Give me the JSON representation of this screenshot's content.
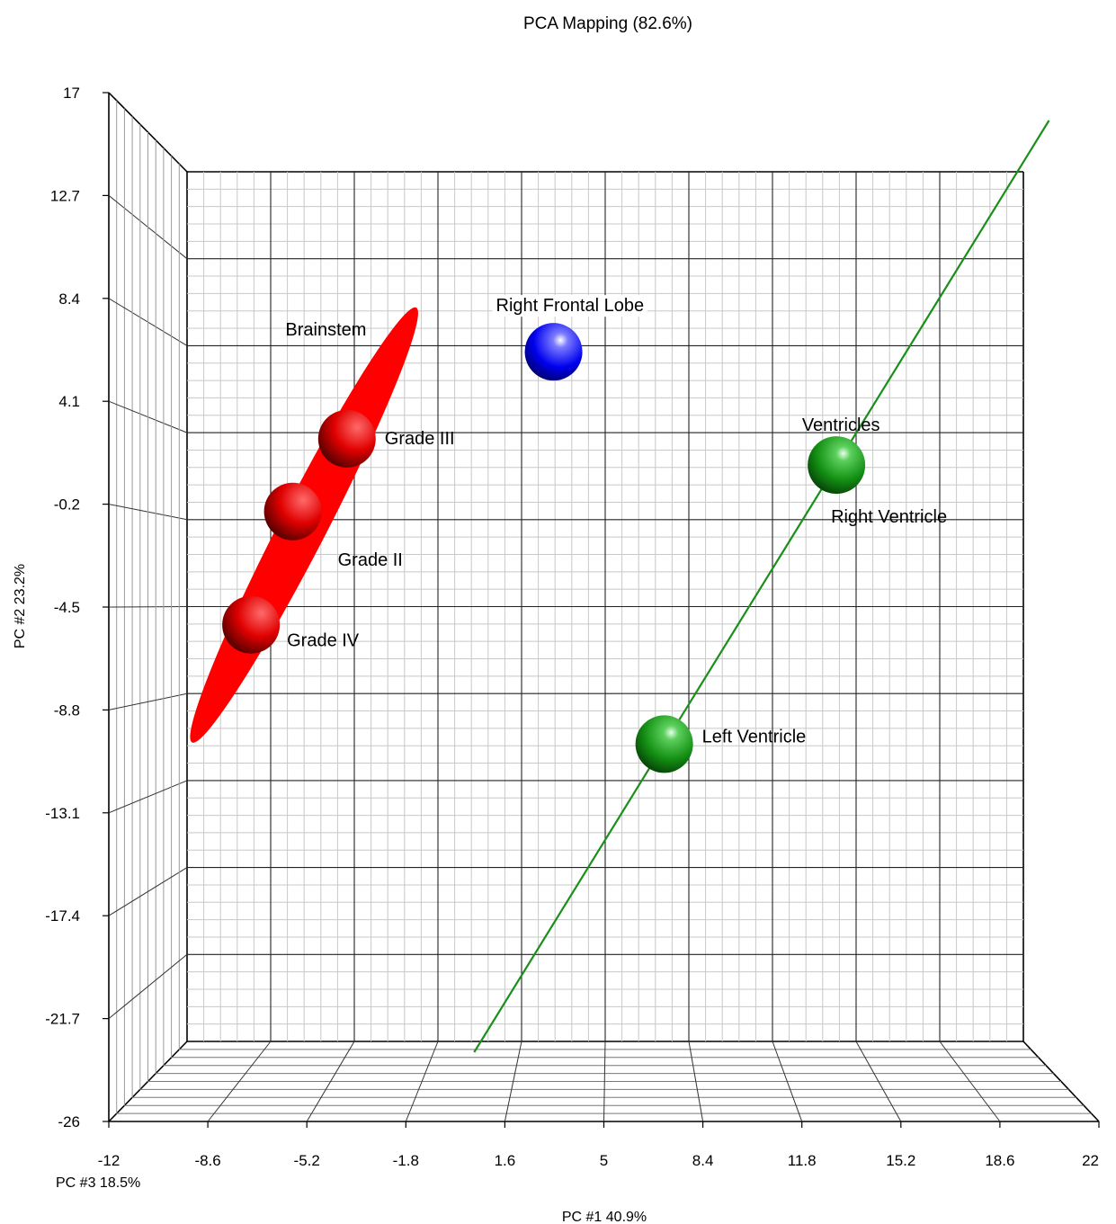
{
  "chart_data": {
    "type": "scatter",
    "title": "PCA Mapping (82.6%)",
    "xlabel": "PC #1 40.9%",
    "ylabel": "PC #2 23.2%",
    "zlabel": "PC #3 18.5%",
    "x_ticks": [
      "-12",
      "-8.6",
      "-5.2",
      "-1.8",
      "1.6",
      "5",
      "8.4",
      "11.8",
      "15.2",
      "18.6",
      "22"
    ],
    "y_ticks": [
      "17",
      "12.7",
      "8.4",
      "4.1",
      "-0.2",
      "-4.5",
      "-8.8",
      "-13.1",
      "-17.4",
      "-21.7",
      "-26"
    ],
    "xlim": [
      -12,
      22
    ],
    "ylim": [
      -26,
      17
    ],
    "grid": true,
    "points": [
      {
        "label": "Right Frontal Lobe",
        "x": 2.9,
        "y": 8.1,
        "color": "#0000ff"
      },
      {
        "label": "Grade III",
        "x": -5.5,
        "y": 3.8,
        "color": "#ff0000"
      },
      {
        "label": "Grade II",
        "x": -7.7,
        "y": 0.2,
        "color": "#ff0000"
      },
      {
        "label": "Grade IV",
        "x": -9.4,
        "y": -5.4,
        "color": "#ff0000"
      },
      {
        "label": "Right Ventricle",
        "x": 14.4,
        "y": 2.5,
        "color": "#109010"
      },
      {
        "label": "Left Ventricle",
        "x": 7.4,
        "y": -11.3,
        "color": "#109010"
      }
    ],
    "group_labels": [
      {
        "label": "Brainstem",
        "x": -8.0,
        "y": 8.9
      },
      {
        "label": "Ventricles",
        "x": 13.0,
        "y": 4.2
      }
    ],
    "ellipse": {
      "group": "Brainstem",
      "color": "#ff0000"
    },
    "fit_line": {
      "group": "Ventricles",
      "color": "#1a8f1a"
    }
  }
}
